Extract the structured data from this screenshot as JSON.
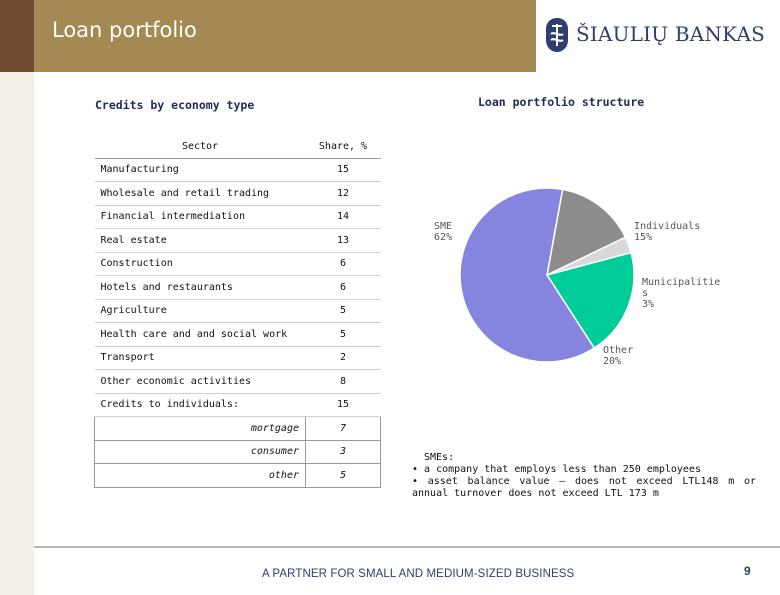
{
  "header": {
    "title": "Loan portfolio",
    "brand": "ŠIAULIŲ BANKAS"
  },
  "left_section": {
    "title": "Credits by economy type"
  },
  "table": {
    "headers": [
      "Sector",
      "Share, %"
    ],
    "rows": [
      {
        "label": "Manufacturing",
        "value": "15"
      },
      {
        "label": "Wholesale and retail trading",
        "value": "12"
      },
      {
        "label": "Financial intermediation",
        "value": "14"
      },
      {
        "label": "Real estate",
        "value": "13"
      },
      {
        "label": "Construction",
        "value": "6"
      },
      {
        "label": "Hotels and restaurants",
        "value": "6"
      },
      {
        "label": "Agriculture",
        "value": "5"
      },
      {
        "label": "Health care and and social work",
        "value": "5"
      },
      {
        "label": "Transport",
        "value": "2"
      },
      {
        "label": "Other economic activities",
        "value": "8"
      },
      {
        "label": "Credits to individuals:",
        "value": "15"
      }
    ],
    "subrows": [
      {
        "label": "mortgage",
        "value": "7"
      },
      {
        "label": "consumer",
        "value": "3"
      },
      {
        "label": "other",
        "value": "5"
      }
    ]
  },
  "right_section": {
    "title": "Loan portfolio structure"
  },
  "chart_data": {
    "type": "pie",
    "title": "Loan portfolio structure",
    "slices": [
      {
        "name": "SME",
        "value": 62,
        "label": "62%",
        "color": "#8585e0"
      },
      {
        "name": "Individuals",
        "value": 15,
        "label": "15%",
        "color": "#8c8c8c"
      },
      {
        "name": "Municipalities",
        "value": 3,
        "label": "3%",
        "color": "#d8d8d8"
      },
      {
        "name": "Other",
        "value": 20,
        "label": "20%",
        "color": "#00cc99"
      }
    ],
    "legend": "none"
  },
  "pie_labels": {
    "sme_name": "SME",
    "sme_pct": "62%",
    "ind_name": "Individuals",
    "ind_pct": "15%",
    "mun_name1": "Municipalitie",
    "mun_name2": "s",
    "mun_pct": "3%",
    "other_name": "Other",
    "other_pct": "20%"
  },
  "note": {
    "title": "SMEs:",
    "line1": "• a company that employs less than 250 employees",
    "line2": "• asset balance value – does not exceed LTL148 m or annual turnover does not exceed LTL 173 m"
  },
  "footer": {
    "tagline": "A PARTNER FOR SMALL AND MEDIUM-SIZED BUSINESS",
    "page": "9"
  },
  "colors": {
    "header": "#a48a52",
    "brand_blue": "#2d3e6f"
  }
}
